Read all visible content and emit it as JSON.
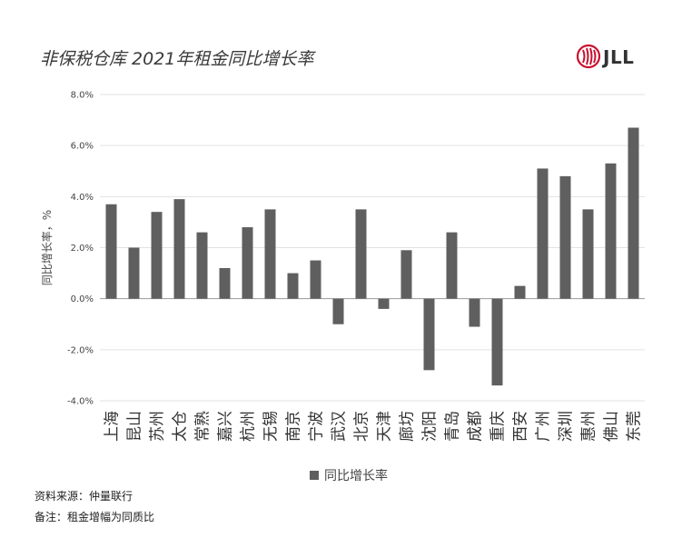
{
  "title": "非保税仓库 2021年租金同比增长率",
  "logo": {
    "text": "JLL",
    "accent": "#c8102e"
  },
  "legend": {
    "label": "同比增长率",
    "color": "#5f5f5f"
  },
  "notes": {
    "source": "资料来源：仲量联行",
    "remark": "备注：租金增幅为同质比"
  },
  "chart_data": {
    "type": "bar",
    "ylabel": "同比增长率，%",
    "ylim": [
      -4,
      8
    ],
    "yticks": [
      8,
      6,
      4,
      2,
      0,
      -2,
      -4
    ],
    "ytick_labels": [
      "8.0%",
      "6.0%",
      "4.0%",
      "2.0%",
      "0.0%",
      "-2.0%",
      "-4.0%"
    ],
    "grid": true,
    "legend_position": "bottom",
    "bar_color": "#5f5f5f",
    "categories": [
      "上海",
      "昆山",
      "苏州",
      "太仓",
      "常熟",
      "嘉兴",
      "杭州",
      "无锡",
      "南京",
      "宁波",
      "武汉",
      "北京",
      "天津",
      "廊坊",
      "沈阳",
      "青岛",
      "成都",
      "重庆",
      "西安",
      "广州",
      "深圳",
      "惠州",
      "佛山",
      "东莞"
    ],
    "series": [
      {
        "name": "同比增长率",
        "values": [
          3.7,
          2.0,
          3.4,
          3.9,
          2.6,
          1.2,
          2.8,
          3.5,
          1.0,
          1.5,
          -1.0,
          3.5,
          -0.4,
          1.9,
          -2.8,
          2.6,
          -1.1,
          -3.4,
          0.5,
          5.1,
          4.8,
          3.5,
          5.3,
          6.7
        ]
      }
    ]
  }
}
